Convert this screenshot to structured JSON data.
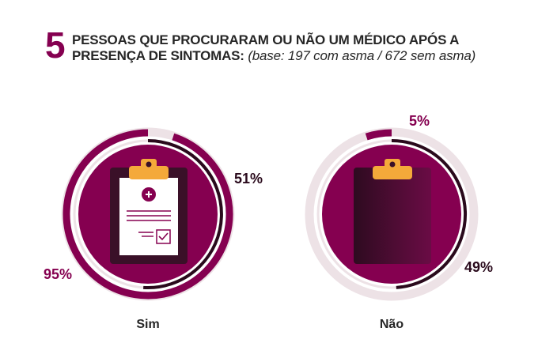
{
  "header": {
    "number": "5",
    "title_line1": "PESSOAS QUE PROCURARAM OU NÃO UM MÉDICO APÓS A",
    "title_line2": "PRESENÇA DE SINTOMAS:",
    "subtitle": "(base: 197 com asma / 672 sem asma)"
  },
  "colors": {
    "magenta": "#850050",
    "dark": "#2a0a1c",
    "track": "#ede2e6",
    "clip": "#f4a93a",
    "text": "#262626"
  },
  "chart_data": {
    "type": "pie",
    "categories": [
      "Sim",
      "Não"
    ],
    "series": [
      {
        "name": "com asma",
        "values": [
          95,
          5
        ]
      },
      {
        "name": "sem asma",
        "values": [
          51,
          49
        ]
      }
    ],
    "data_labels": {
      "Sim": {
        "com_asma": "95%",
        "sem_asma": "51%"
      },
      "Não": {
        "com_asma": "5%",
        "sem_asma": "49%"
      }
    },
    "legend": "none"
  }
}
